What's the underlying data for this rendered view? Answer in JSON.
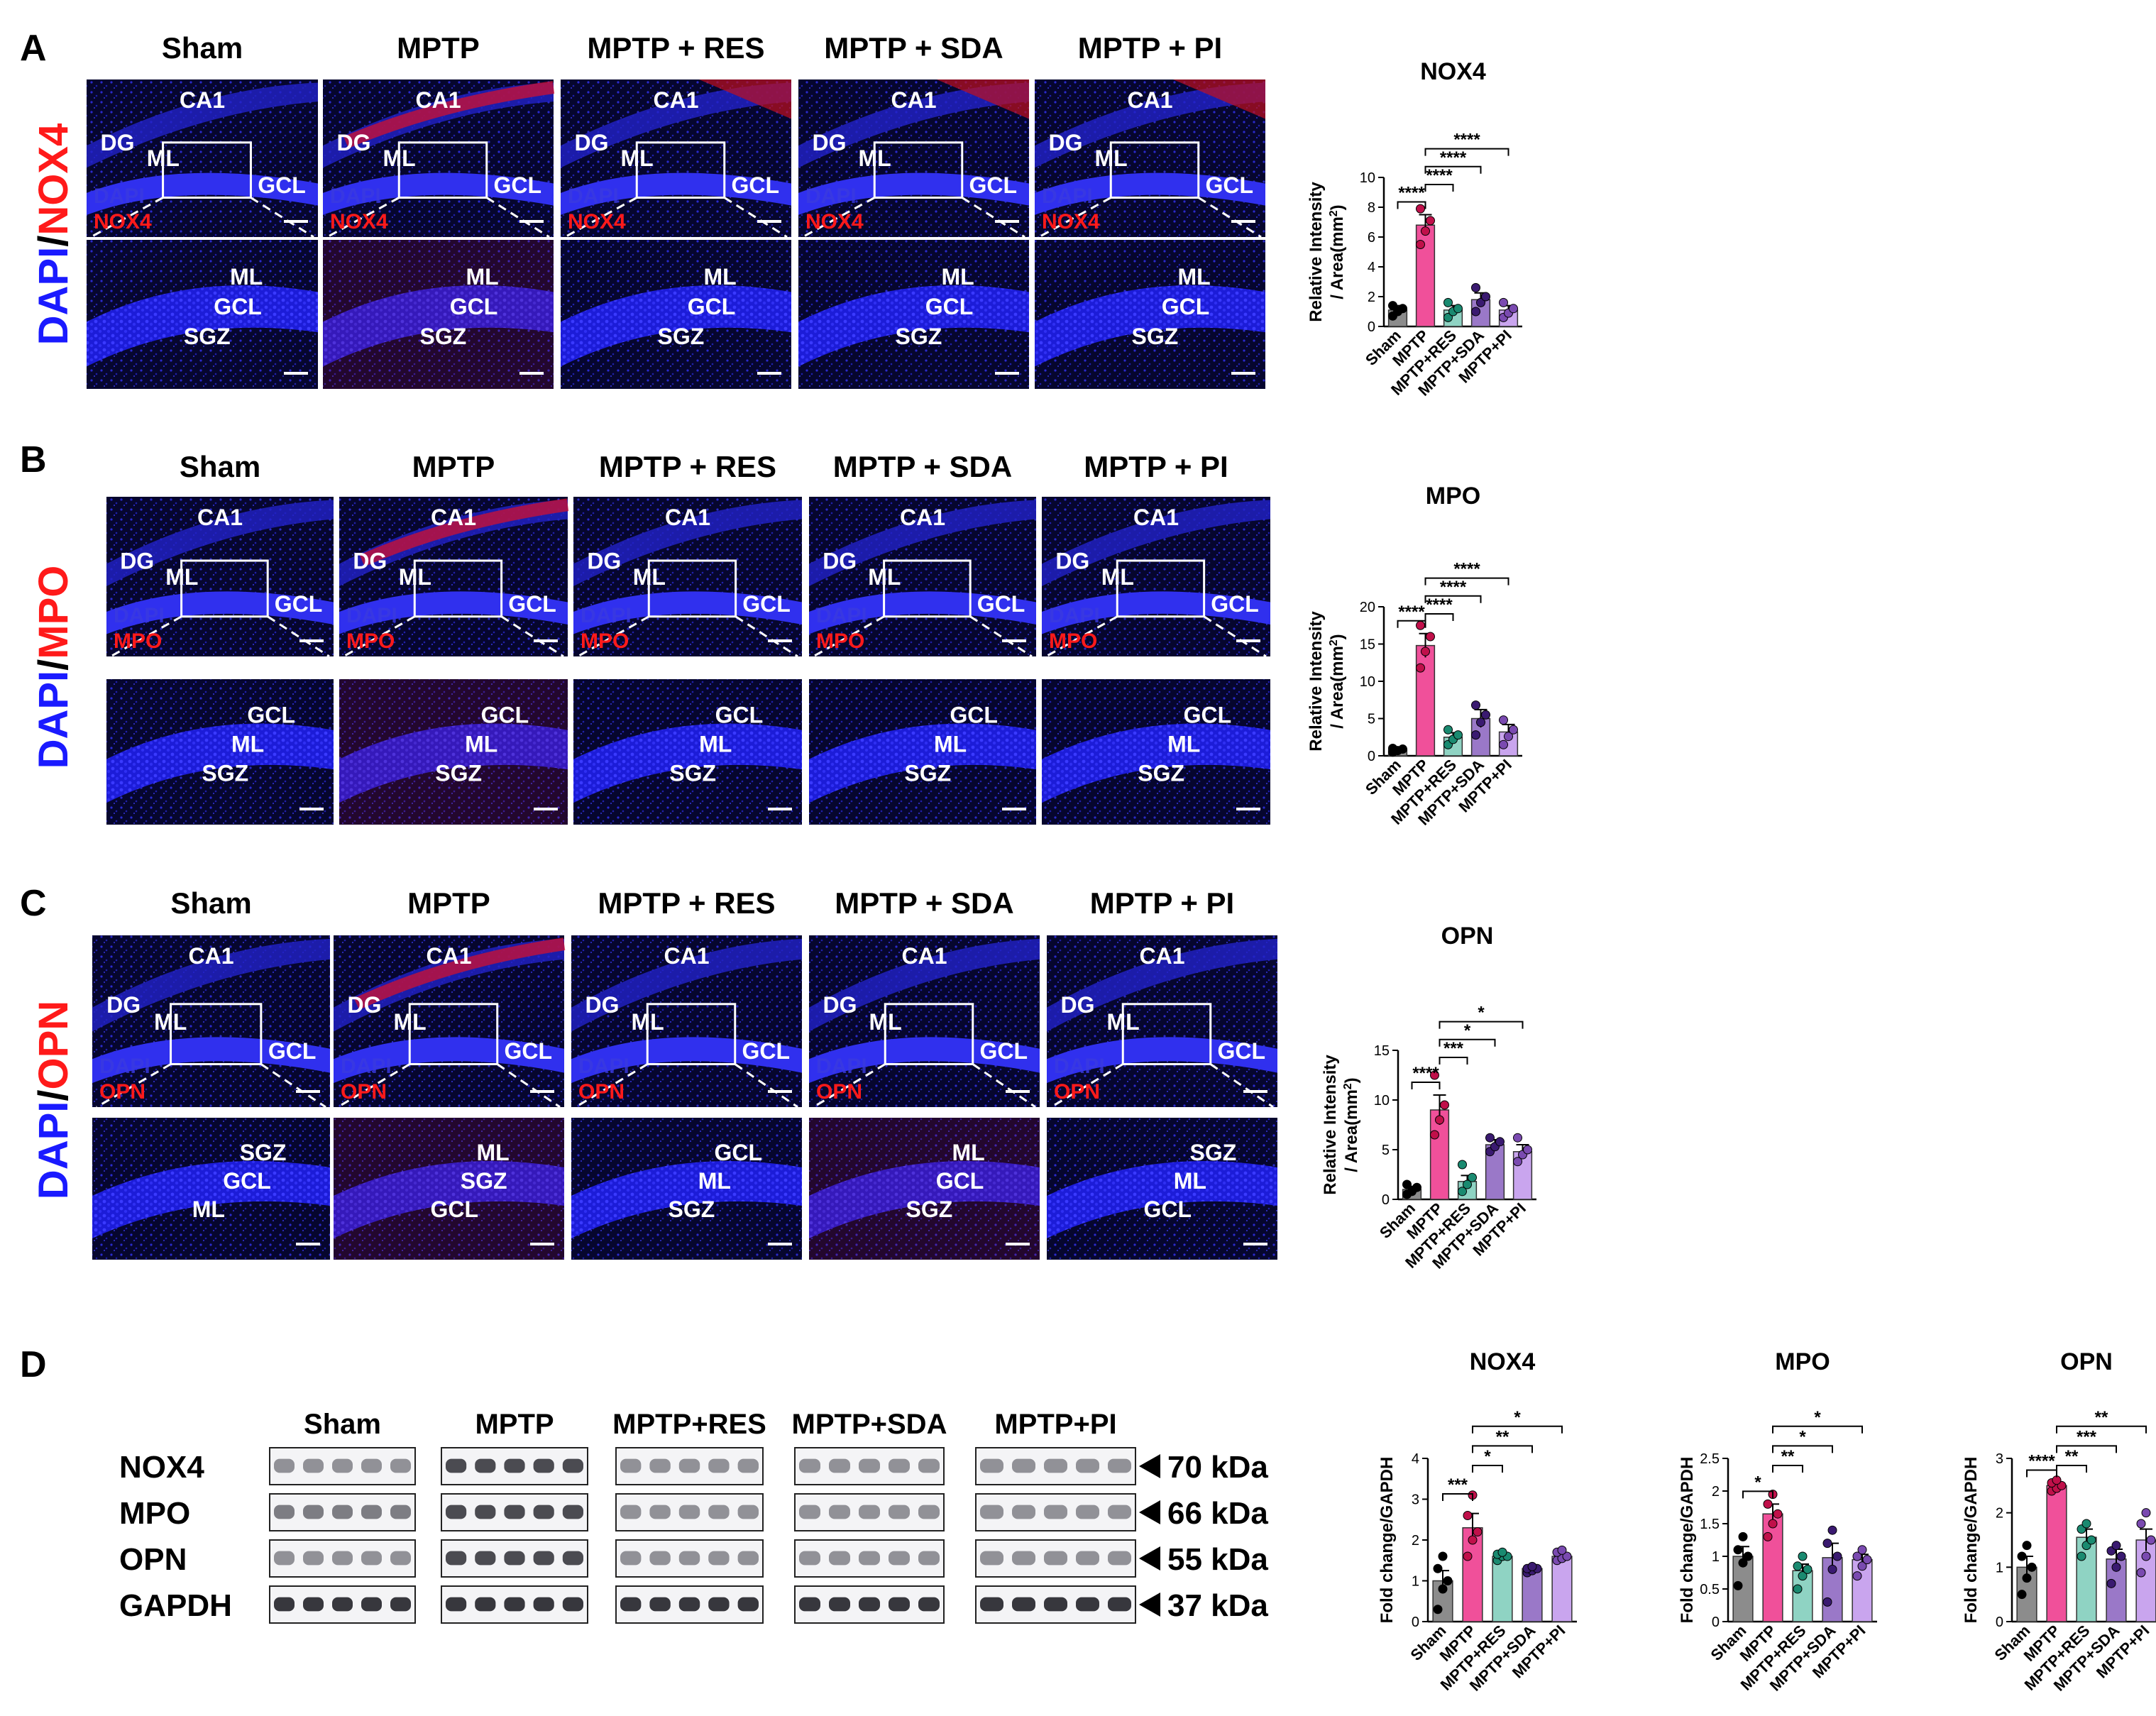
{
  "panels": {
    "A": {
      "letter": "A",
      "stain": "NOX4",
      "counter_stain": "DAPI",
      "slash": "/",
      "groups": [
        "Sham",
        "MPTP",
        "MPTP + RES",
        "MPTP + SDA",
        "MPTP + PI"
      ],
      "inset_dapi": "DAPI",
      "inset_marker": "NOX4",
      "top_labels": [
        [
          "CA1",
          "DG",
          "ML",
          "GCL"
        ],
        [
          "CA1",
          "DG",
          "ML",
          "GCL"
        ],
        [
          "CA1",
          "DG",
          "ML",
          "GCL"
        ],
        [
          "CA1",
          "DG",
          "ML",
          "GCL"
        ],
        [
          "CA1",
          "DG",
          "ML",
          "GCL"
        ]
      ],
      "bottom_labels": [
        [
          "ML",
          "GCL",
          "SGZ"
        ],
        [
          "ML",
          "GCL",
          "SGZ"
        ],
        [
          "ML",
          "GCL",
          "SGZ"
        ],
        [
          "ML",
          "GCL",
          "SGZ"
        ],
        [
          "ML",
          "GCL",
          "SGZ"
        ]
      ]
    },
    "B": {
      "letter": "B",
      "stain": "MPO",
      "counter_stain": "DAPI",
      "slash": "/",
      "groups": [
        "Sham",
        "MPTP",
        "MPTP + RES",
        "MPTP + SDA",
        "MPTP + PI"
      ],
      "inset_dapi": "DAPI",
      "inset_marker": "MPO",
      "top_labels": [
        [
          "CA1",
          "DG",
          "ML",
          "GCL"
        ],
        [
          "CA1",
          "DG",
          "ML",
          "GCL"
        ],
        [
          "CA1",
          "DG",
          "ML",
          "GCL"
        ],
        [
          "CA1",
          "DG",
          "ML",
          "GCL"
        ],
        [
          "CA1",
          "DG",
          "ML",
          "GCL"
        ]
      ],
      "bottom_labels": [
        [
          "GCL",
          "ML",
          "SGZ"
        ],
        [
          "GCL",
          "ML",
          "SGZ"
        ],
        [
          "GCL",
          "ML",
          "SGZ"
        ],
        [
          "GCL",
          "ML",
          "SGZ"
        ],
        [
          "GCL",
          "ML",
          "SGZ"
        ]
      ]
    },
    "C": {
      "letter": "C",
      "stain": "OPN",
      "counter_stain": "DAPI",
      "slash": "/",
      "groups": [
        "Sham",
        "MPTP",
        "MPTP + RES",
        "MPTP + SDA",
        "MPTP + PI"
      ],
      "inset_dapi": "DAPI",
      "inset_marker": "OPN",
      "top_labels": [
        [
          "CA1",
          "DG",
          "ML",
          "GCL"
        ],
        [
          "CA1",
          "DG",
          "ML",
          "GCL"
        ],
        [
          "CA1",
          "DG",
          "ML",
          "GCL"
        ],
        [
          "CA1",
          "DG",
          "ML",
          "GCL"
        ],
        [
          "CA1",
          "DG",
          "ML",
          "GCL"
        ]
      ],
      "bottom_labels": [
        [
          "SGZ",
          "GCL",
          "ML"
        ],
        [
          "ML",
          "SGZ",
          "GCL"
        ],
        [
          "GCL",
          "ML",
          "SGZ"
        ],
        [
          "ML",
          "GCL",
          "SGZ"
        ],
        [
          "SGZ",
          "ML",
          "GCL"
        ]
      ]
    },
    "D": {
      "letter": "D",
      "groups": [
        "Sham",
        "MPTP",
        "MPTP+RES",
        "MPTP+SDA",
        "MPTP+PI"
      ],
      "rows": [
        {
          "label": "NOX4",
          "kda": "70 kDa"
        },
        {
          "label": "MPO",
          "kda": "66 kDa"
        },
        {
          "label": "OPN",
          "kda": "55 kDa"
        },
        {
          "label": "GAPDH",
          "kda": "37 kDa"
        }
      ]
    }
  },
  "colors": {
    "dapi": "#1a1aff",
    "marker": "#ff1a1a",
    "sham": "#8c8c8c",
    "mptp": "#f0509a",
    "res": "#8fd3c3",
    "sda": "#9a78c8",
    "pi": "#c9a5ee"
  },
  "chart_data": [
    {
      "id": "ihc-nox4",
      "type": "bar",
      "title": "NOX4",
      "ylabel_line1": "Relative Intensity",
      "ylabel_line2": "/ Area(mm",
      "ylabel_sup": "2",
      "ylabel_close": ")",
      "categories": [
        "Sham",
        "MPTP",
        "MPTP+RES",
        "MPTP+SDA",
        "MPTP+PI"
      ],
      "values": [
        1.1,
        6.8,
        1.1,
        1.8,
        1.1
      ],
      "errors": [
        0.3,
        0.7,
        0.3,
        0.45,
        0.3
      ],
      "points": [
        [
          0.7,
          1.0,
          1.2,
          1.4
        ],
        [
          5.5,
          6.4,
          7.1,
          7.9
        ],
        [
          0.6,
          1.0,
          1.2,
          1.6
        ],
        [
          1.0,
          1.6,
          2.0,
          2.6
        ],
        [
          0.6,
          0.9,
          1.2,
          1.6
        ]
      ],
      "ylim": [
        0,
        10
      ],
      "yticks": [
        0,
        2,
        4,
        6,
        8,
        10
      ],
      "significance": [
        {
          "from": 0,
          "to": 1,
          "label": "****"
        },
        {
          "from": 1,
          "to": 2,
          "label": "****"
        },
        {
          "from": 1,
          "to": 3,
          "label": "****"
        },
        {
          "from": 1,
          "to": 4,
          "label": "****"
        }
      ]
    },
    {
      "id": "ihc-mpo",
      "type": "bar",
      "title": "MPO",
      "ylabel_line1": "Relative Intensity",
      "ylabel_line2": "/ Area(mm",
      "ylabel_sup": "2",
      "ylabel_close": ")",
      "categories": [
        "Sham",
        "MPTP",
        "MPTP+RES",
        "MPTP+SDA",
        "MPTP+PI"
      ],
      "values": [
        0.8,
        14.8,
        2.5,
        5.0,
        3.2
      ],
      "errors": [
        0.2,
        1.6,
        0.6,
        1.2,
        1.0
      ],
      "points": [
        [
          0.5,
          0.7,
          0.9,
          1.0
        ],
        [
          11.8,
          14.0,
          16.0,
          17.5
        ],
        [
          1.5,
          2.2,
          2.8,
          3.5
        ],
        [
          2.8,
          4.5,
          5.5,
          6.8
        ],
        [
          1.5,
          2.6,
          3.5,
          4.8
        ]
      ],
      "ylim": [
        0,
        20
      ],
      "yticks": [
        0,
        5,
        10,
        15,
        20
      ],
      "significance": [
        {
          "from": 0,
          "to": 1,
          "label": "****"
        },
        {
          "from": 1,
          "to": 2,
          "label": "****"
        },
        {
          "from": 1,
          "to": 3,
          "label": "****"
        },
        {
          "from": 1,
          "to": 4,
          "label": "****"
        }
      ]
    },
    {
      "id": "ihc-opn",
      "type": "bar",
      "title": "OPN",
      "ylabel_line1": "Relative Intensity",
      "ylabel_line2": "/ Area(mm",
      "ylabel_sup": "2",
      "ylabel_close": ")",
      "categories": [
        "Sham",
        "MPTP",
        "MPTP+RES",
        "MPTP+SDA",
        "MPTP+PI"
      ],
      "values": [
        1.0,
        9.0,
        1.8,
        5.5,
        4.8
      ],
      "errors": [
        0.3,
        1.5,
        0.6,
        0.5,
        0.7
      ],
      "points": [
        [
          0.5,
          0.8,
          1.2,
          1.5
        ],
        [
          6.5,
          8.0,
          9.5,
          12.5
        ],
        [
          0.8,
          1.5,
          2.2,
          3.5
        ],
        [
          4.8,
          5.3,
          5.8,
          6.2
        ],
        [
          3.8,
          4.5,
          5.0,
          6.2
        ]
      ],
      "ylim": [
        0,
        15
      ],
      "yticks": [
        0,
        5,
        10,
        15
      ],
      "significance": [
        {
          "from": 0,
          "to": 1,
          "label": "****"
        },
        {
          "from": 1,
          "to": 2,
          "label": "***"
        },
        {
          "from": 1,
          "to": 3,
          "label": "*"
        },
        {
          "from": 1,
          "to": 4,
          "label": "*"
        }
      ]
    },
    {
      "id": "wb-nox4",
      "type": "bar",
      "title": "NOX4",
      "ylabel": "Fold change/GAPDH",
      "categories": [
        "Sham",
        "MPTP",
        "MPTP+RES",
        "MPTP+SDA",
        "MPTP+PI"
      ],
      "values": [
        1.0,
        2.3,
        1.6,
        1.3,
        1.6
      ],
      "errors": [
        0.25,
        0.35,
        0.05,
        0.05,
        0.07
      ],
      "points": [
        [
          0.3,
          0.8,
          1.0,
          1.3,
          1.6
        ],
        [
          1.6,
          2.0,
          2.2,
          2.6,
          3.1
        ],
        [
          1.5,
          1.6,
          1.6,
          1.65,
          1.7
        ],
        [
          1.2,
          1.25,
          1.3,
          1.3,
          1.35
        ],
        [
          1.5,
          1.55,
          1.6,
          1.7,
          1.75
        ]
      ],
      "ylim": [
        0,
        4
      ],
      "yticks": [
        0,
        1,
        2,
        3,
        4
      ],
      "significance": [
        {
          "from": 0,
          "to": 1,
          "label": "***"
        },
        {
          "from": 1,
          "to": 2,
          "label": "*"
        },
        {
          "from": 1,
          "to": 3,
          "label": "**"
        },
        {
          "from": 1,
          "to": 4,
          "label": "*"
        }
      ]
    },
    {
      "id": "wb-mpo",
      "type": "bar",
      "title": "MPO",
      "ylabel": "Fold change/GAPDH",
      "categories": [
        "Sham",
        "MPTP",
        "MPTP+RES",
        "MPTP+SDA",
        "MPTP+PI"
      ],
      "values": [
        1.0,
        1.65,
        0.78,
        0.98,
        0.95
      ],
      "errors": [
        0.15,
        0.15,
        0.1,
        0.22,
        0.08
      ],
      "points": [
        [
          0.55,
          0.9,
          1.0,
          1.1,
          1.3
        ],
        [
          1.3,
          1.5,
          1.65,
          1.8,
          1.95
        ],
        [
          0.5,
          0.7,
          0.8,
          0.85,
          1.0
        ],
        [
          0.3,
          0.8,
          1.0,
          1.2,
          1.4
        ],
        [
          0.7,
          0.85,
          0.95,
          1.0,
          1.1
        ]
      ],
      "ylim": [
        0,
        2.5
      ],
      "yticks": [
        0.0,
        0.5,
        1.0,
        1.5,
        2.0,
        2.5
      ],
      "significance": [
        {
          "from": 0,
          "to": 1,
          "label": "*"
        },
        {
          "from": 1,
          "to": 2,
          "label": "**"
        },
        {
          "from": 1,
          "to": 3,
          "label": "*"
        },
        {
          "from": 1,
          "to": 4,
          "label": "*"
        }
      ]
    },
    {
      "id": "wb-opn",
      "type": "bar",
      "title": "OPN",
      "ylabel": "Fold change/GAPDH",
      "categories": [
        "Sham",
        "MPTP",
        "MPTP+RES",
        "MPTP+SDA",
        "MPTP+PI"
      ],
      "values": [
        1.0,
        2.5,
        1.55,
        1.15,
        1.5
      ],
      "errors": [
        0.2,
        0.05,
        0.15,
        0.18,
        0.2
      ],
      "points": [
        [
          0.5,
          0.8,
          1.0,
          1.2,
          1.4
        ],
        [
          2.4,
          2.45,
          2.5,
          2.55,
          2.6
        ],
        [
          1.2,
          1.4,
          1.5,
          1.7,
          1.8
        ],
        [
          0.7,
          1.0,
          1.2,
          1.3,
          1.4
        ],
        [
          0.9,
          1.2,
          1.5,
          1.8,
          2.0
        ]
      ],
      "ylim": [
        0,
        3
      ],
      "yticks": [
        0,
        1,
        2,
        3
      ],
      "significance": [
        {
          "from": 0,
          "to": 1,
          "label": "****"
        },
        {
          "from": 1,
          "to": 2,
          "label": "**"
        },
        {
          "from": 1,
          "to": 3,
          "label": "***"
        },
        {
          "from": 1,
          "to": 4,
          "label": "**"
        }
      ]
    }
  ]
}
